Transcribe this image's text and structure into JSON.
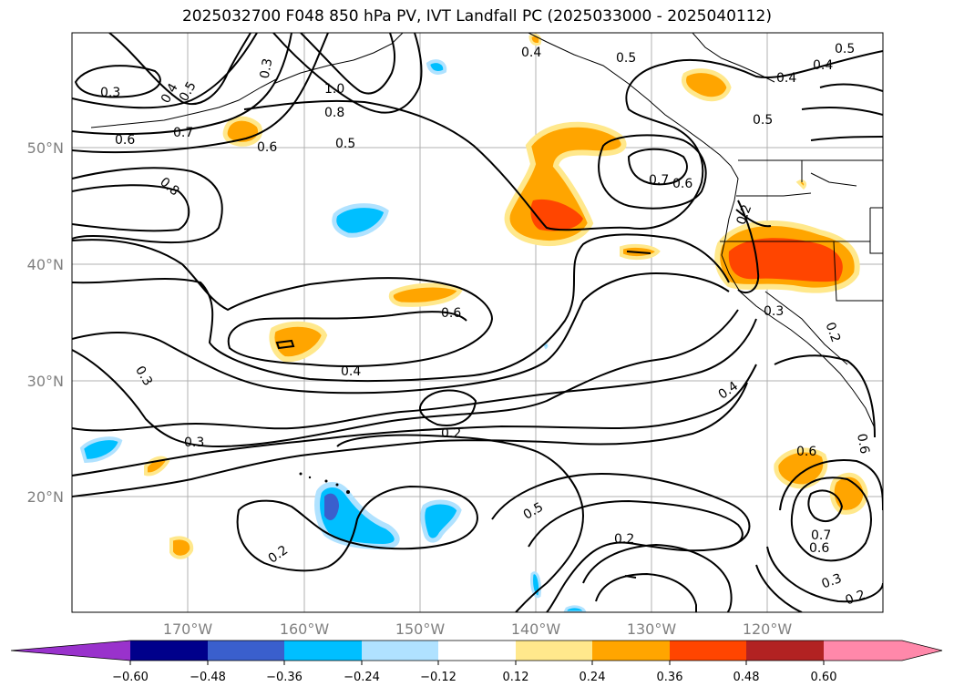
{
  "title": "2025032700 F048 850 hPa PV, IVT Landfall PC (2025033000 - 2025040112)",
  "map": {
    "lat_labels": [
      "50°N",
      "40°N",
      "30°N",
      "20°N"
    ],
    "lon_labels": [
      "170°W",
      "160°W",
      "150°W",
      "140°W",
      "130°W",
      "120°W"
    ]
  },
  "contour_labels": [
    "0.3",
    "0.4",
    "0.5",
    "0.6",
    "0.7",
    "0.8",
    "1.0",
    "0.8",
    "0.5",
    "0.6",
    "0.4",
    "0.5",
    "0.5",
    "0.4",
    "0.5",
    "0.4",
    "0.7",
    "0.6",
    "0.2",
    "0.6",
    "0.4",
    "0.3",
    "0.3",
    "0.2",
    "0.5",
    "0.2",
    "0.3",
    "0.2",
    "0.6",
    "0.4",
    "0.2",
    "0.6",
    "0.7",
    "0.6",
    "0.3",
    "0.2",
    "0.3"
  ],
  "colorbar": {
    "ticks": [
      "−0.60",
      "−0.48",
      "−0.36",
      "−0.24",
      "−0.12",
      "0.12",
      "0.24",
      "0.36",
      "0.48",
      "0.60"
    ],
    "colors": [
      "#8a2be2",
      "#00008b",
      "#3a5fcd",
      "#00bfff",
      "#b0e2ff",
      "#ffffff",
      "#ffe88c",
      "#ffa500",
      "#ff4500",
      "#b22222",
      "#ff88aa",
      "#ff88aa"
    ],
    "under_color": "#9932cc",
    "over_color": "#ff88aa"
  }
}
